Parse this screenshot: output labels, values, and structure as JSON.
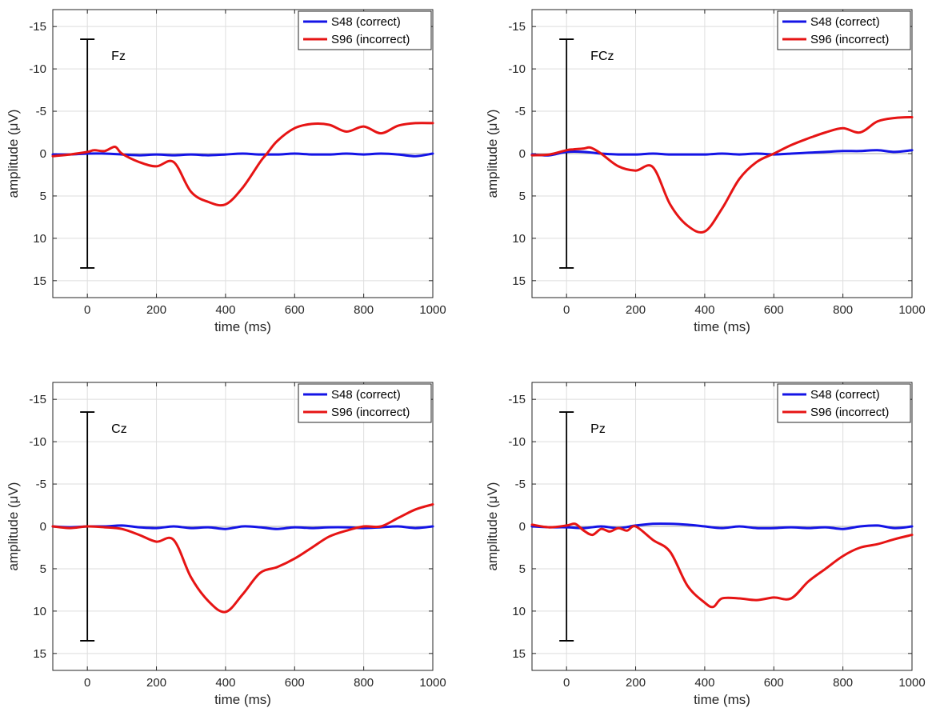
{
  "chart_data": [
    {
      "type": "line",
      "title": "Fz",
      "xlabel": "time (ms)",
      "ylabel": "amplitude (μV)",
      "xlim": [
        -100,
        1000
      ],
      "ylim": [
        -17,
        17
      ],
      "y_reversed": true,
      "xticks": [
        0,
        200,
        400,
        600,
        800,
        1000
      ],
      "yticks": [
        -15,
        -10,
        -5,
        0,
        5,
        10,
        15
      ],
      "grid": true,
      "legend": "top-right",
      "errorbar": {
        "x": 0,
        "low": -13.5,
        "high": 13.5
      },
      "series": [
        {
          "name": "S48 (correct)",
          "color": "#1414e6",
          "x": [
            -100,
            -50,
            0,
            50,
            100,
            150,
            200,
            250,
            300,
            350,
            400,
            450,
            500,
            550,
            600,
            650,
            700,
            750,
            800,
            850,
            900,
            950,
            1000
          ],
          "values": [
            0.1,
            0.1,
            0.0,
            0.0,
            0.1,
            0.2,
            0.1,
            0.2,
            0.1,
            0.2,
            0.1,
            0.0,
            0.1,
            0.1,
            0.0,
            0.1,
            0.1,
            0.0,
            0.1,
            0.0,
            0.1,
            0.3,
            0.0
          ]
        },
        {
          "name": "S96 (incorrect)",
          "color": "#e61414",
          "x": [
            -100,
            -50,
            0,
            20,
            50,
            80,
            100,
            150,
            200,
            250,
            300,
            350,
            400,
            450,
            500,
            520,
            550,
            600,
            650,
            700,
            750,
            800,
            850,
            900,
            950,
            1000
          ],
          "values": [
            0.3,
            0.1,
            -0.2,
            -0.4,
            -0.3,
            -0.8,
            0.0,
            1.0,
            1.5,
            1.0,
            4.5,
            5.7,
            6.0,
            4.0,
            1.0,
            0.0,
            -1.5,
            -3.0,
            -3.5,
            -3.4,
            -2.6,
            -3.2,
            -2.4,
            -3.3,
            -3.6,
            -3.6
          ]
        }
      ]
    },
    {
      "type": "line",
      "title": "FCz",
      "xlabel": "time (ms)",
      "ylabel": "amplitude (μV)",
      "xlim": [
        -100,
        1000
      ],
      "ylim": [
        -17,
        17
      ],
      "y_reversed": true,
      "xticks": [
        0,
        200,
        400,
        600,
        800,
        1000
      ],
      "yticks": [
        -15,
        -10,
        -5,
        0,
        5,
        10,
        15
      ],
      "grid": true,
      "legend": "top-right",
      "errorbar": {
        "x": 0,
        "low": -13.5,
        "high": 13.5
      },
      "series": [
        {
          "name": "S48 (correct)",
          "color": "#1414e6",
          "x": [
            -100,
            -50,
            0,
            50,
            100,
            150,
            200,
            250,
            300,
            350,
            400,
            450,
            500,
            550,
            600,
            650,
            700,
            750,
            800,
            850,
            900,
            950,
            1000
          ],
          "values": [
            0.1,
            0.2,
            -0.2,
            -0.2,
            0.0,
            0.1,
            0.1,
            0.0,
            0.1,
            0.1,
            0.1,
            0.0,
            0.1,
            0.0,
            0.1,
            0.0,
            -0.1,
            -0.2,
            -0.3,
            -0.3,
            -0.4,
            -0.2,
            -0.4
          ]
        },
        {
          "name": "S96 (incorrect)",
          "color": "#e61414",
          "x": [
            -100,
            -50,
            0,
            20,
            50,
            70,
            100,
            150,
            200,
            250,
            300,
            350,
            400,
            450,
            500,
            550,
            600,
            650,
            700,
            750,
            800,
            850,
            900,
            950,
            1000
          ],
          "values": [
            0.2,
            0.1,
            -0.4,
            -0.5,
            -0.6,
            -0.7,
            0.0,
            1.5,
            2.0,
            1.6,
            6.0,
            8.5,
            9.2,
            6.5,
            3.0,
            1.0,
            0.0,
            -1.0,
            -1.8,
            -2.5,
            -3.0,
            -2.5,
            -3.8,
            -4.2,
            -4.3
          ]
        }
      ]
    },
    {
      "type": "line",
      "title": "Cz",
      "xlabel": "time (ms)",
      "ylabel": "amplitude (μV)",
      "xlim": [
        -100,
        1000
      ],
      "ylim": [
        -17,
        17
      ],
      "y_reversed": true,
      "xticks": [
        0,
        200,
        400,
        600,
        800,
        1000
      ],
      "yticks": [
        -15,
        -10,
        -5,
        0,
        5,
        10,
        15
      ],
      "grid": true,
      "legend": "top-right",
      "errorbar": {
        "x": 0,
        "low": -13.5,
        "high": 13.5
      },
      "series": [
        {
          "name": "S48 (correct)",
          "color": "#1414e6",
          "x": [
            -100,
            -50,
            0,
            50,
            100,
            150,
            200,
            250,
            300,
            350,
            400,
            450,
            500,
            550,
            600,
            650,
            700,
            750,
            800,
            850,
            900,
            950,
            1000
          ],
          "values": [
            0.0,
            0.1,
            0.0,
            0.0,
            -0.1,
            0.1,
            0.2,
            0.0,
            0.2,
            0.1,
            0.3,
            0.0,
            0.1,
            0.3,
            0.1,
            0.2,
            0.1,
            0.1,
            0.2,
            0.1,
            0.0,
            0.2,
            0.0
          ]
        },
        {
          "name": "S96 (incorrect)",
          "color": "#e61414",
          "x": [
            -100,
            -50,
            0,
            50,
            100,
            150,
            200,
            250,
            300,
            350,
            400,
            450,
            500,
            550,
            600,
            650,
            700,
            750,
            800,
            850,
            900,
            950,
            1000
          ],
          "values": [
            0.0,
            0.2,
            0.0,
            0.1,
            0.3,
            1.0,
            1.8,
            1.6,
            6.0,
            8.8,
            10.1,
            8.0,
            5.5,
            4.8,
            3.8,
            2.5,
            1.2,
            0.5,
            0.0,
            0.0,
            -1.0,
            -2.0,
            -2.6
          ]
        }
      ]
    },
    {
      "type": "line",
      "title": "Pz",
      "xlabel": "time (ms)",
      "ylabel": "amplitude (μV)",
      "xlim": [
        -100,
        1000
      ],
      "ylim": [
        -17,
        17
      ],
      "y_reversed": true,
      "xticks": [
        0,
        200,
        400,
        600,
        800,
        1000
      ],
      "yticks": [
        -15,
        -10,
        -5,
        0,
        5,
        10,
        15
      ],
      "grid": true,
      "legend": "top-right",
      "errorbar": {
        "x": 0,
        "low": -13.5,
        "high": 13.5
      },
      "series": [
        {
          "name": "S48 (correct)",
          "color": "#1414e6",
          "x": [
            -100,
            -50,
            0,
            50,
            100,
            150,
            200,
            250,
            300,
            350,
            400,
            450,
            500,
            550,
            600,
            650,
            700,
            750,
            800,
            850,
            900,
            950,
            1000
          ],
          "values": [
            0.0,
            0.1,
            0.1,
            0.2,
            0.0,
            0.2,
            -0.1,
            -0.3,
            -0.3,
            -0.2,
            0.0,
            0.2,
            0.0,
            0.2,
            0.2,
            0.1,
            0.2,
            0.1,
            0.3,
            0.0,
            -0.1,
            0.2,
            0.0
          ]
        },
        {
          "name": "S96 (incorrect)",
          "color": "#e61414",
          "x": [
            -100,
            -50,
            0,
            25,
            50,
            75,
            100,
            125,
            150,
            175,
            200,
            250,
            300,
            350,
            400,
            425,
            450,
            500,
            550,
            600,
            650,
            700,
            750,
            800,
            850,
            900,
            950,
            1000
          ],
          "values": [
            -0.2,
            0.1,
            -0.1,
            -0.3,
            0.5,
            1.0,
            0.3,
            0.6,
            0.2,
            0.5,
            0.0,
            1.6,
            3.0,
            7.0,
            9.0,
            9.5,
            8.5,
            8.5,
            8.7,
            8.4,
            8.5,
            6.5,
            5.0,
            3.5,
            2.5,
            2.1,
            1.5,
            1.0
          ]
        }
      ]
    }
  ]
}
